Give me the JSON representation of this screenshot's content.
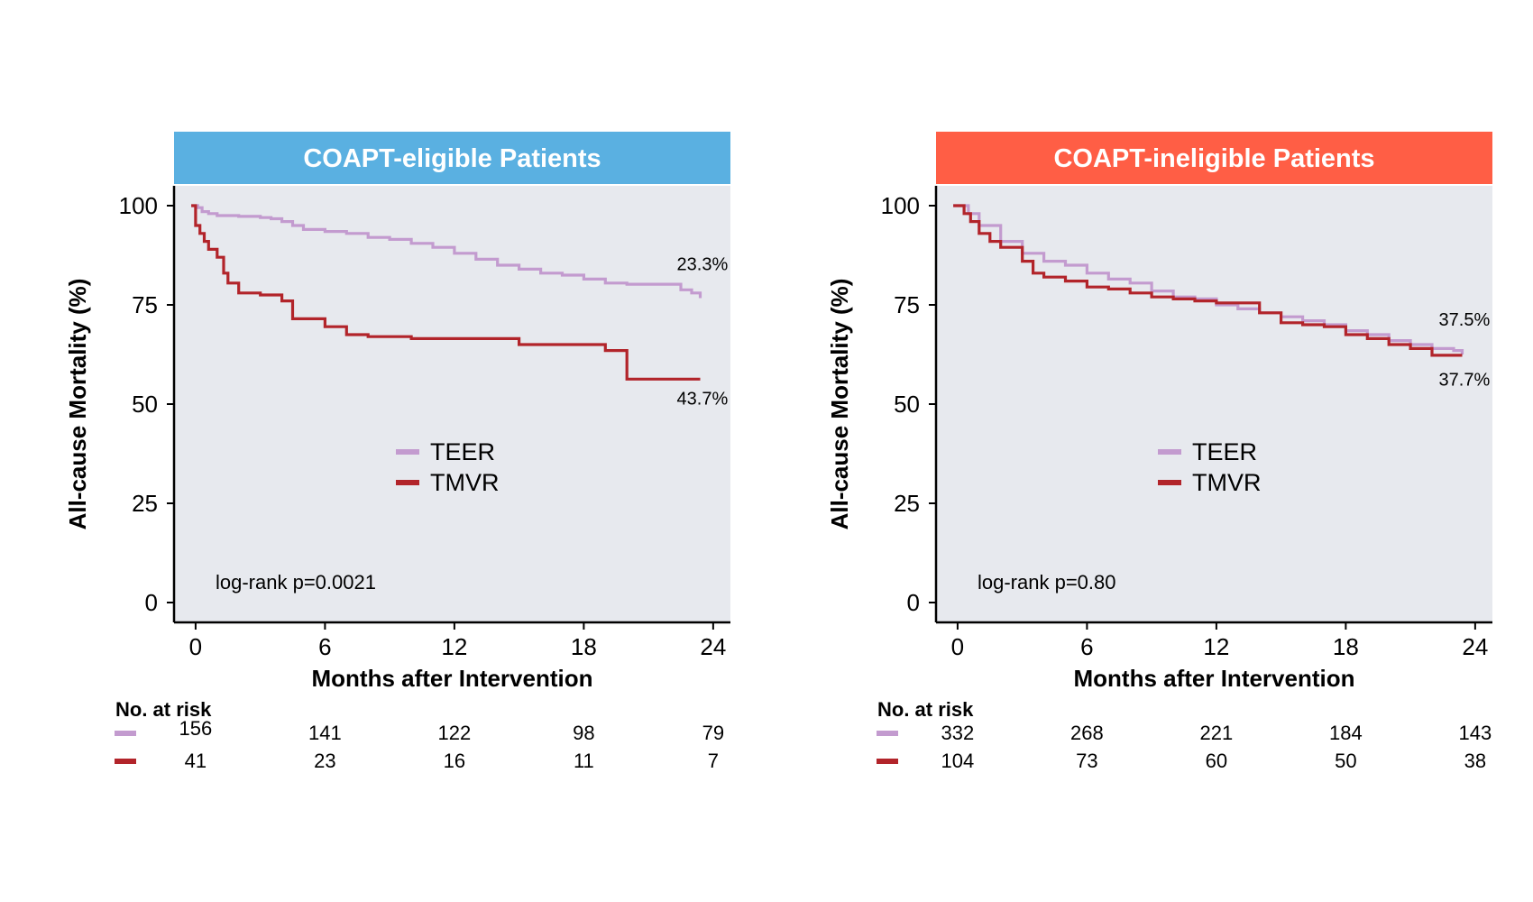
{
  "chart_data": [
    {
      "type": "line",
      "title": "COAPT-eligible Patients",
      "title_color": "#5AB0E1",
      "xlabel": "Months after Intervention",
      "ylabel": "All-cause Mortality (%)",
      "xlim": [
        -1,
        24.8
      ],
      "ylim": [
        -5,
        105
      ],
      "x_ticks": [
        0,
        6,
        12,
        18,
        24
      ],
      "y_ticks": [
        0,
        25,
        50,
        75,
        100
      ],
      "grid": false,
      "legend_position": "center",
      "annotation": "log-rank p=0.0021",
      "series": [
        {
          "name": "TEER",
          "color": "#C39BCF",
          "end_label": "23.3%",
          "x": [
            -0.2,
            0.1,
            0.3,
            0.6,
            1.0,
            2.0,
            3.0,
            3.5,
            4.0,
            4.5,
            5.0,
            6.0,
            7.0,
            8.0,
            9.0,
            10.0,
            11.0,
            12.0,
            13.0,
            14.0,
            15.0,
            16.0,
            17.0,
            18.0,
            19.0,
            20.0,
            21.0,
            22.0,
            22.5,
            23.0,
            23.4
          ],
          "values": [
            100,
            99.5,
            98.5,
            98,
            97.5,
            97.3,
            97,
            96.7,
            96,
            95,
            94,
            93.5,
            93,
            92,
            91.5,
            90.5,
            89.5,
            88,
            86.5,
            85,
            84,
            83,
            82.5,
            81.5,
            80.5,
            80.2,
            80.2,
            80.2,
            78.8,
            78,
            76.7
          ]
        },
        {
          "name": "TMVR",
          "color": "#B2242A",
          "end_label": "43.7%",
          "x": [
            -0.2,
            0.0,
            0.2,
            0.4,
            0.6,
            1.0,
            1.3,
            1.5,
            2.0,
            3.0,
            4.0,
            4.5,
            6.0,
            7.0,
            8.0,
            10.0,
            12.0,
            14.0,
            15.0,
            16.0,
            18.0,
            19.0,
            20.0,
            21.0,
            22.0,
            23.4
          ],
          "values": [
            100,
            95,
            93,
            91,
            89,
            87,
            83,
            80.5,
            78,
            77.5,
            76,
            71.5,
            69.5,
            67.5,
            67,
            66.5,
            66.5,
            66.5,
            65,
            65,
            65,
            63.5,
            56.3,
            56.3,
            56.3,
            56.3
          ]
        }
      ],
      "risk_table": {
        "heading": "No. at risk",
        "rows": [
          {
            "series": "TEER",
            "values": [
              "156",
              "141",
              "122",
              "98",
              "79"
            ]
          },
          {
            "series": "TMVR",
            "values": [
              "41",
              "23",
              "16",
              "11",
              "7"
            ]
          }
        ]
      }
    },
    {
      "type": "line",
      "title": "COAPT-ineligible Patients",
      "title_color": "#FF5E45",
      "xlabel": "Months after Intervention",
      "ylabel": "All-cause Mortality (%)",
      "xlim": [
        -1,
        24.8
      ],
      "ylim": [
        -5,
        105
      ],
      "x_ticks": [
        0,
        6,
        12,
        18,
        24
      ],
      "y_ticks": [
        0,
        25,
        50,
        75,
        100
      ],
      "grid": false,
      "legend_position": "center",
      "annotation": "log-rank p=0.80",
      "series": [
        {
          "name": "TEER",
          "color": "#C39BCF",
          "end_label": "37.5%",
          "x": [
            -0.2,
            0.5,
            1.0,
            2.0,
            3.0,
            4.0,
            5.0,
            6.0,
            7.0,
            8.0,
            9.0,
            10.0,
            11.0,
            12.0,
            13.0,
            14.0,
            15.0,
            16.0,
            17.0,
            18.0,
            19.0,
            20.0,
            21.0,
            22.0,
            23.0,
            23.4
          ],
          "values": [
            100,
            98,
            95,
            91,
            88,
            86,
            85,
            83,
            81.5,
            80.5,
            78.5,
            77,
            76.5,
            75,
            74,
            73,
            72,
            71,
            70,
            68.5,
            67.5,
            66,
            65,
            64,
            63.5,
            62.5
          ]
        },
        {
          "name": "TMVR",
          "color": "#B2242A",
          "end_label": "37.7%",
          "x": [
            -0.2,
            0.3,
            0.6,
            1.0,
            1.5,
            2.0,
            3.0,
            3.5,
            4.0,
            5.0,
            6.0,
            7.0,
            8.0,
            9.0,
            10.0,
            11.0,
            12.0,
            13.0,
            14.0,
            15.0,
            16.0,
            17.0,
            18.0,
            19.0,
            20.0,
            21.0,
            22.0,
            23.4
          ],
          "values": [
            100,
            98,
            96,
            93,
            91,
            89.5,
            86,
            83,
            82,
            81,
            79.5,
            79,
            78,
            77,
            76.5,
            76,
            75.5,
            75.5,
            73,
            70.5,
            70,
            69.5,
            67.5,
            66.5,
            65,
            64,
            62.3,
            62.3
          ]
        }
      ],
      "risk_table": {
        "heading": "No. at risk",
        "rows": [
          {
            "series": "TEER",
            "values": [
              "332",
              "268",
              "221",
              "184",
              "143"
            ]
          },
          {
            "series": "TMVR",
            "values": [
              "104",
              "73",
              "60",
              "50",
              "38"
            ]
          }
        ]
      }
    }
  ]
}
